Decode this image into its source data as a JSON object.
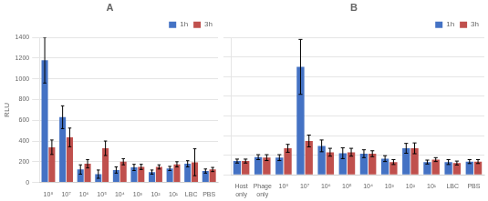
{
  "chart_data": [
    {
      "type": "bar",
      "title": "A",
      "ylabel": "RLU",
      "categories": [
        "10⁸",
        "10⁷",
        "10⁶",
        "10⁵",
        "10⁴",
        "10³",
        "10²",
        "10¹",
        "LBC",
        "PBS"
      ],
      "series": [
        {
          "name": "1h",
          "color": "#4472C4",
          "values": [
            1180,
            630,
            125,
            80,
            120,
            145,
            100,
            135,
            180,
            110
          ],
          "errors": [
            220,
            110,
            45,
            40,
            30,
            30,
            20,
            20,
            30,
            20
          ]
        },
        {
          "name": "3h",
          "color": "#C0504D",
          "values": [
            340,
            435,
            180,
            330,
            200,
            150,
            150,
            175,
            195,
            125
          ],
          "errors": [
            70,
            90,
            40,
            70,
            30,
            25,
            20,
            25,
            130,
            20
          ]
        }
      ],
      "ylim": [
        0,
        1400
      ],
      "yticks": [
        0,
        200,
        400,
        600,
        800,
        1000,
        1200,
        1400
      ],
      "grid": true,
      "legend": "upper right"
    },
    {
      "type": "bar",
      "title": "B",
      "categories": [
        "Host\nonly",
        "Phage\nonly",
        "10⁸",
        "10⁷",
        "10⁶",
        "10⁵",
        "10⁴",
        "10³",
        "10²",
        "10¹",
        "LBC",
        "PBS"
      ],
      "series": [
        {
          "name": "1h",
          "color": "#4472C4",
          "values": [
            140,
            180,
            175,
            1100,
            295,
            220,
            215,
            165,
            270,
            130,
            130,
            135
          ],
          "errors": [
            20,
            25,
            30,
            280,
            60,
            55,
            40,
            30,
            50,
            20,
            25,
            20
          ]
        },
        {
          "name": "3h",
          "color": "#C0504D",
          "values": [
            140,
            175,
            270,
            345,
            230,
            230,
            215,
            130,
            270,
            155,
            120,
            135
          ],
          "errors": [
            20,
            30,
            40,
            60,
            40,
            40,
            30,
            25,
            55,
            20,
            20,
            20
          ]
        }
      ],
      "ylim": [
        0,
        1400
      ],
      "yticks": [
        0,
        200,
        400,
        600,
        800,
        1000,
        1200,
        1400
      ],
      "grid": true,
      "legend": "upper right",
      "tick_labels": "x"
    }
  ]
}
